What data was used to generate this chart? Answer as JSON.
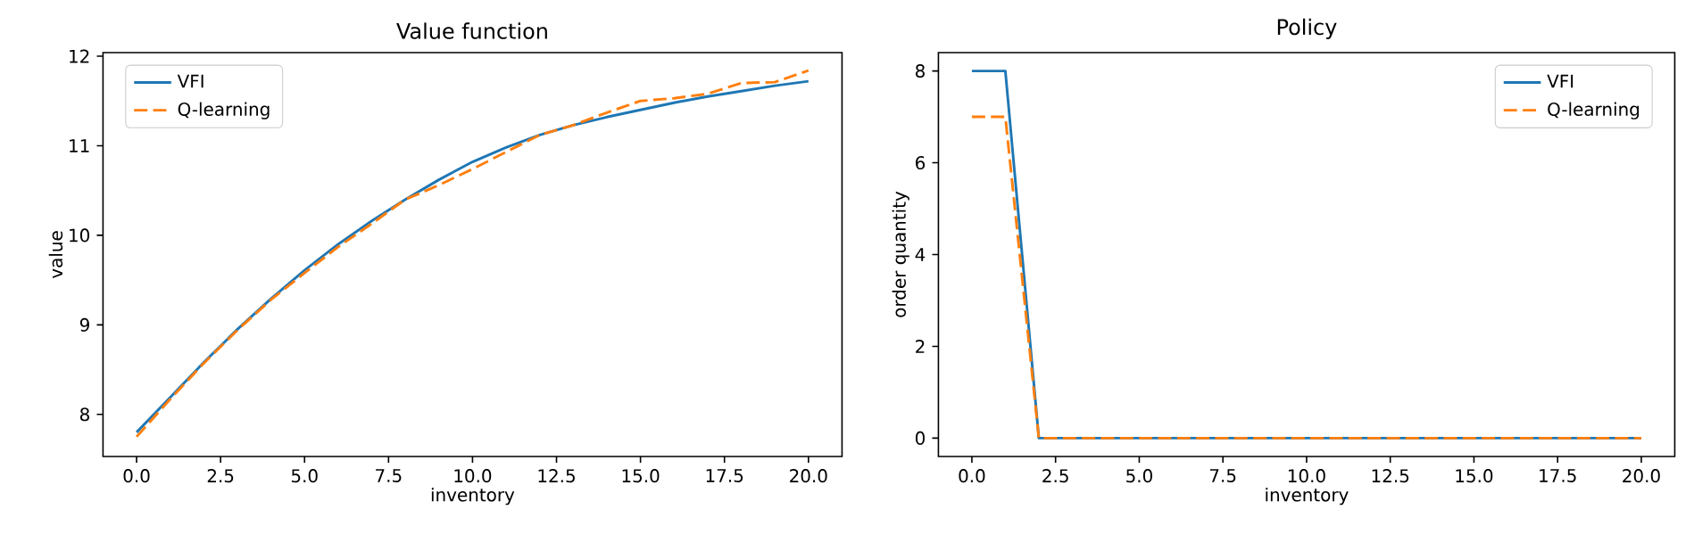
{
  "chart_data": [
    {
      "type": "line",
      "title": "Value function",
      "xlabel": "inventory",
      "ylabel": "value",
      "x": [
        0,
        1,
        2,
        3,
        4,
        5,
        6,
        7,
        8,
        9,
        10,
        11,
        12,
        13,
        14,
        15,
        16,
        17,
        18,
        19,
        20
      ],
      "series": [
        {
          "name": "VFI",
          "color": "#1f77b4",
          "line_style": "solid",
          "values": [
            7.8,
            8.19,
            8.58,
            8.95,
            9.29,
            9.61,
            9.9,
            10.16,
            10.4,
            10.62,
            10.82,
            10.98,
            11.12,
            11.23,
            11.32,
            11.4,
            11.48,
            11.55,
            11.61,
            11.67,
            11.72
          ]
        },
        {
          "name": "Q-learning",
          "color": "#ff7f0e",
          "line_style": "dashed",
          "values": [
            7.75,
            8.17,
            8.57,
            8.94,
            9.28,
            9.58,
            9.87,
            10.13,
            10.4,
            10.56,
            10.74,
            10.93,
            11.12,
            11.23,
            11.37,
            11.5,
            11.53,
            11.58,
            11.7,
            11.71,
            11.84
          ]
        }
      ],
      "xlim": [
        -1,
        21
      ],
      "ylim": [
        7.53,
        12.04
      ],
      "xticks": [
        {
          "value": 0,
          "label": "0.0"
        },
        {
          "value": 2.5,
          "label": "2.5"
        },
        {
          "value": 5,
          "label": "5.0"
        },
        {
          "value": 7.5,
          "label": "7.5"
        },
        {
          "value": 10,
          "label": "10.0"
        },
        {
          "value": 12.5,
          "label": "12.5"
        },
        {
          "value": 15,
          "label": "15.0"
        },
        {
          "value": 17.5,
          "label": "17.5"
        },
        {
          "value": 20,
          "label": "20.0"
        }
      ],
      "yticks": [
        8,
        9,
        10,
        11,
        12
      ],
      "legend": "top left",
      "grid": false,
      "marker": "none"
    },
    {
      "type": "line",
      "title": "Policy",
      "xlabel": "inventory",
      "ylabel": "order quantity",
      "x": [
        0,
        1,
        2,
        3,
        4,
        5,
        6,
        7,
        8,
        9,
        10,
        11,
        12,
        13,
        14,
        15,
        16,
        17,
        18,
        19,
        20
      ],
      "series": [
        {
          "name": "VFI",
          "color": "#1f77b4",
          "line_style": "solid",
          "values": [
            8,
            8,
            0,
            0,
            0,
            0,
            0,
            0,
            0,
            0,
            0,
            0,
            0,
            0,
            0,
            0,
            0,
            0,
            0,
            0,
            0
          ]
        },
        {
          "name": "Q-learning",
          "color": "#ff7f0e",
          "line_style": "dashed",
          "values": [
            7,
            7,
            0,
            0,
            0,
            0,
            0,
            0,
            0,
            0,
            0,
            0,
            0,
            0,
            0,
            0,
            0,
            0,
            0,
            0,
            0
          ]
        }
      ],
      "xlim": [
        -1,
        21
      ],
      "ylim": [
        -0.4,
        8.4
      ],
      "xticks": [
        {
          "value": 0,
          "label": "0.0"
        },
        {
          "value": 2.5,
          "label": "2.5"
        },
        {
          "value": 5,
          "label": "5.0"
        },
        {
          "value": 7.5,
          "label": "7.5"
        },
        {
          "value": 10,
          "label": "10.0"
        },
        {
          "value": 12.5,
          "label": "12.5"
        },
        {
          "value": 15,
          "label": "15.0"
        },
        {
          "value": 17.5,
          "label": "17.5"
        },
        {
          "value": 20,
          "label": "20.0"
        }
      ],
      "yticks": [
        0,
        2,
        4,
        6,
        8
      ],
      "legend": "top right",
      "grid": false,
      "marker": "none"
    }
  ]
}
